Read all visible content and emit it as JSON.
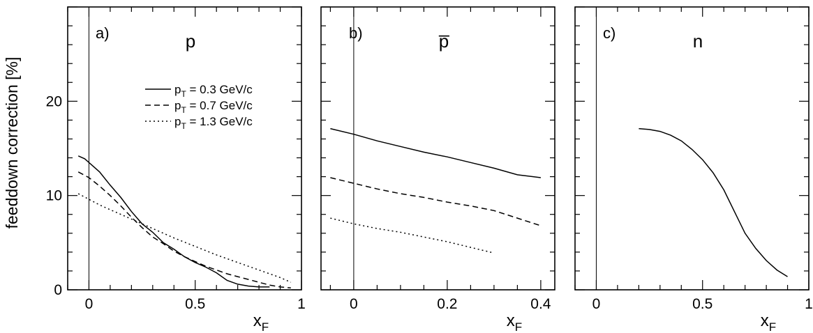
{
  "ylabel": "feeddown correction [%]",
  "xlabel_main": "x",
  "xlabel_sub": "F",
  "legend": [
    {
      "prefix": "p",
      "sub": "T",
      "text": " = 0.3 GeV/c",
      "dash": "solid"
    },
    {
      "prefix": "p",
      "sub": "T",
      "text": " = 0.7 GeV/c",
      "dash": "dashed"
    },
    {
      "prefix": "p",
      "sub": "T",
      "text": " = 1.3 GeV/c",
      "dash": "dotted"
    }
  ],
  "chart_data": [
    {
      "type": "line",
      "panel_label": "a)",
      "particle": "p",
      "xlim": [
        -0.1,
        1.0
      ],
      "ylim": [
        0,
        30
      ],
      "xticks": [
        {
          "v": 0,
          "label": "0"
        },
        {
          "v": 0.5,
          "label": "0.5"
        },
        {
          "v": 1,
          "label": "1"
        }
      ],
      "yticks": [
        {
          "v": 0,
          "label": "0"
        },
        {
          "v": 10,
          "label": "10"
        },
        {
          "v": 20,
          "label": "20"
        }
      ],
      "series": [
        {
          "name": "p_T = 0.3 GeV/c",
          "dash": "solid",
          "x": [
            -0.05,
            -0.02,
            0.0,
            0.05,
            0.1,
            0.15,
            0.2,
            0.25,
            0.3,
            0.35,
            0.4,
            0.45,
            0.5,
            0.55,
            0.6,
            0.65,
            0.7,
            0.75,
            0.8,
            0.85
          ],
          "y": [
            14.2,
            13.9,
            13.5,
            12.5,
            11.1,
            9.8,
            8.3,
            7.0,
            6.1,
            5.0,
            4.3,
            3.5,
            2.9,
            2.4,
            1.8,
            1.0,
            0.6,
            0.4,
            0.3,
            0.3
          ]
        },
        {
          "name": "p_T = 0.7 GeV/c",
          "dash": "dashed",
          "x": [
            -0.05,
            0.0,
            0.05,
            0.1,
            0.15,
            0.2,
            0.25,
            0.3,
            0.35,
            0.4,
            0.45,
            0.5,
            0.55,
            0.6,
            0.65,
            0.7,
            0.75,
            0.8,
            0.85,
            0.9,
            0.95
          ],
          "y": [
            12.5,
            11.9,
            11.0,
            10.0,
            8.9,
            7.7,
            6.6,
            5.6,
            4.9,
            4.1,
            3.5,
            3.0,
            2.5,
            2.1,
            1.7,
            1.4,
            1.1,
            0.8,
            0.5,
            0.3,
            0.2
          ]
        },
        {
          "name": "p_T = 1.3 GeV/c",
          "dash": "dotted",
          "x": [
            -0.05,
            0.0,
            0.05,
            0.1,
            0.15,
            0.2,
            0.3,
            0.4,
            0.5,
            0.6,
            0.7,
            0.8,
            0.9,
            0.95
          ],
          "y": [
            10.2,
            9.6,
            9.0,
            8.5,
            8.0,
            7.5,
            6.5,
            5.5,
            4.6,
            3.7,
            2.9,
            2.1,
            1.3,
            0.8
          ]
        }
      ]
    },
    {
      "type": "line",
      "panel_label": "b)",
      "particle": "p̅",
      "xlim": [
        -0.07,
        0.43
      ],
      "ylim": [
        0,
        30
      ],
      "xticks": [
        {
          "v": 0,
          "label": "0"
        },
        {
          "v": 0.2,
          "label": "0.2"
        },
        {
          "v": 0.4,
          "label": "0.4"
        }
      ],
      "yticks": [],
      "series": [
        {
          "name": "p_T = 0.3 GeV/c",
          "dash": "solid",
          "x": [
            -0.05,
            0.0,
            0.05,
            0.1,
            0.15,
            0.2,
            0.25,
            0.3,
            0.35,
            0.4
          ],
          "y": [
            17.1,
            16.5,
            15.8,
            15.2,
            14.6,
            14.1,
            13.5,
            12.9,
            12.2,
            11.9
          ]
        },
        {
          "name": "p_T = 0.7 GeV/c",
          "dash": "dashed",
          "x": [
            -0.05,
            0.0,
            0.05,
            0.1,
            0.15,
            0.2,
            0.25,
            0.3,
            0.35,
            0.4
          ],
          "y": [
            11.9,
            11.3,
            10.7,
            10.2,
            9.8,
            9.3,
            8.9,
            8.4,
            7.6,
            6.8
          ]
        },
        {
          "name": "p_T = 1.3 GeV/c",
          "dash": "dotted",
          "x": [
            -0.05,
            0.0,
            0.05,
            0.1,
            0.15,
            0.2,
            0.25,
            0.3
          ],
          "y": [
            7.6,
            7.0,
            6.5,
            6.1,
            5.6,
            5.1,
            4.5,
            3.9
          ]
        }
      ]
    },
    {
      "type": "line",
      "panel_label": "c)",
      "particle": "n",
      "xlim": [
        -0.1,
        1.0
      ],
      "ylim": [
        0,
        30
      ],
      "xticks": [
        {
          "v": 0,
          "label": "0"
        },
        {
          "v": 0.5,
          "label": "0.5"
        },
        {
          "v": 1,
          "label": "1"
        }
      ],
      "yticks": [],
      "series": [
        {
          "name": "p_T = 0.3 GeV/c",
          "dash": "solid",
          "x": [
            0.2,
            0.25,
            0.3,
            0.35,
            0.4,
            0.45,
            0.5,
            0.55,
            0.6,
            0.65,
            0.7,
            0.75,
            0.8,
            0.85,
            0.9
          ],
          "y": [
            17.1,
            17.0,
            16.8,
            16.4,
            15.8,
            14.9,
            13.8,
            12.4,
            10.6,
            8.3,
            6.0,
            4.4,
            3.1,
            2.1,
            1.4
          ]
        }
      ]
    }
  ]
}
